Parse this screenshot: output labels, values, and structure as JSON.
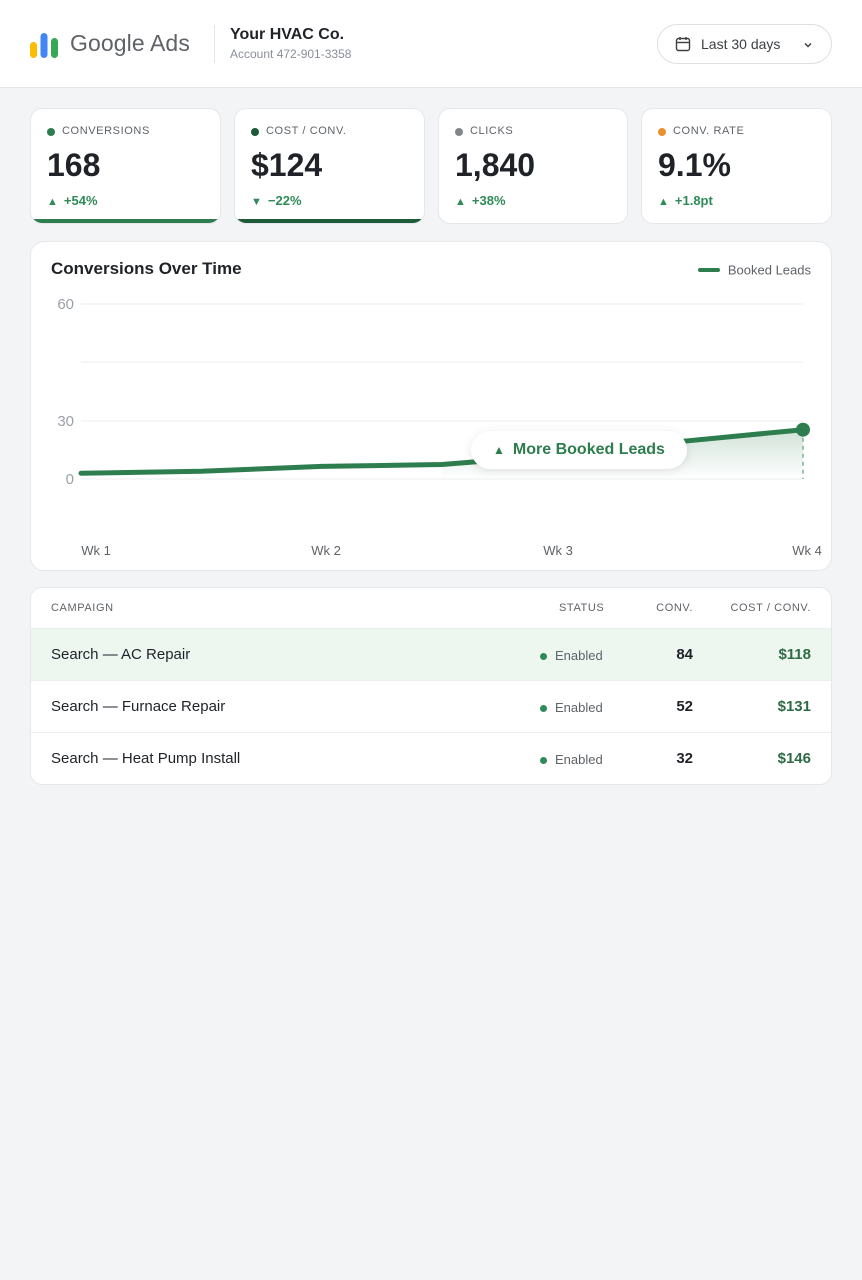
{
  "header": {
    "brand": "Google Ads",
    "account_name": "Your HVAC Co.",
    "account_number": "Account 472-901-3358",
    "date_range": "Last 30 days",
    "logo_colors": [
      "#fbbc04",
      "#4285f4",
      "#34a853"
    ]
  },
  "kpis": [
    {
      "label": "CONVERSIONS",
      "value": "168",
      "delta": "+54%",
      "direction": "up",
      "dot_color": "#2e7d4f",
      "underline": true,
      "underline_color": "#2e7d4f"
    },
    {
      "label": "COST / CONV.",
      "value": "$124",
      "delta": "−22%",
      "direction": "down",
      "dot_color": "#1e5a37",
      "underline": true,
      "underline_color": "#1e5a37"
    },
    {
      "label": "CLICKS",
      "value": "1,840",
      "delta": "+38%",
      "direction": "up",
      "dot_color": "#80868b",
      "underline": false
    },
    {
      "label": "CONV. RATE",
      "value": "9.1%",
      "delta": "+1.8pt",
      "direction": "up",
      "dot_color": "#e8912d",
      "underline": false
    }
  ],
  "chart_data": {
    "type": "line",
    "title": "Conversions Over Time",
    "series": [
      {
        "name": "Booked Leads",
        "x": [
          1,
          1.5,
          2,
          2.5,
          3,
          3.5,
          4
        ],
        "y": [
          3,
          4,
          6.5,
          7.5,
          12.5,
          19.5,
          25.5
        ]
      }
    ],
    "x_ticks": [
      "Wk 1",
      "Wk 2",
      "Wk 3",
      "Wk 4"
    ],
    "y_ticks": [
      "60",
      "30",
      "0"
    ],
    "ylim": [
      0,
      60
    ],
    "grid": true,
    "legend": "top-right",
    "annotation": "More Booked Leads",
    "line_color": "#2e7d4f"
  },
  "table": {
    "headers": {
      "campaign": "CAMPAIGN",
      "status": "STATUS",
      "conv": "CONV.",
      "cost": "COST / CONV."
    },
    "rows": [
      {
        "name": "Search — AC Repair",
        "status": "Enabled",
        "conv": "84",
        "cost": "$118",
        "highlight": true
      },
      {
        "name": "Search — Furnace Repair",
        "status": "Enabled",
        "conv": "52",
        "cost": "$131",
        "highlight": false
      },
      {
        "name": "Search — Heat Pump Install",
        "status": "Enabled",
        "conv": "32",
        "cost": "$146",
        "highlight": false
      }
    ]
  }
}
